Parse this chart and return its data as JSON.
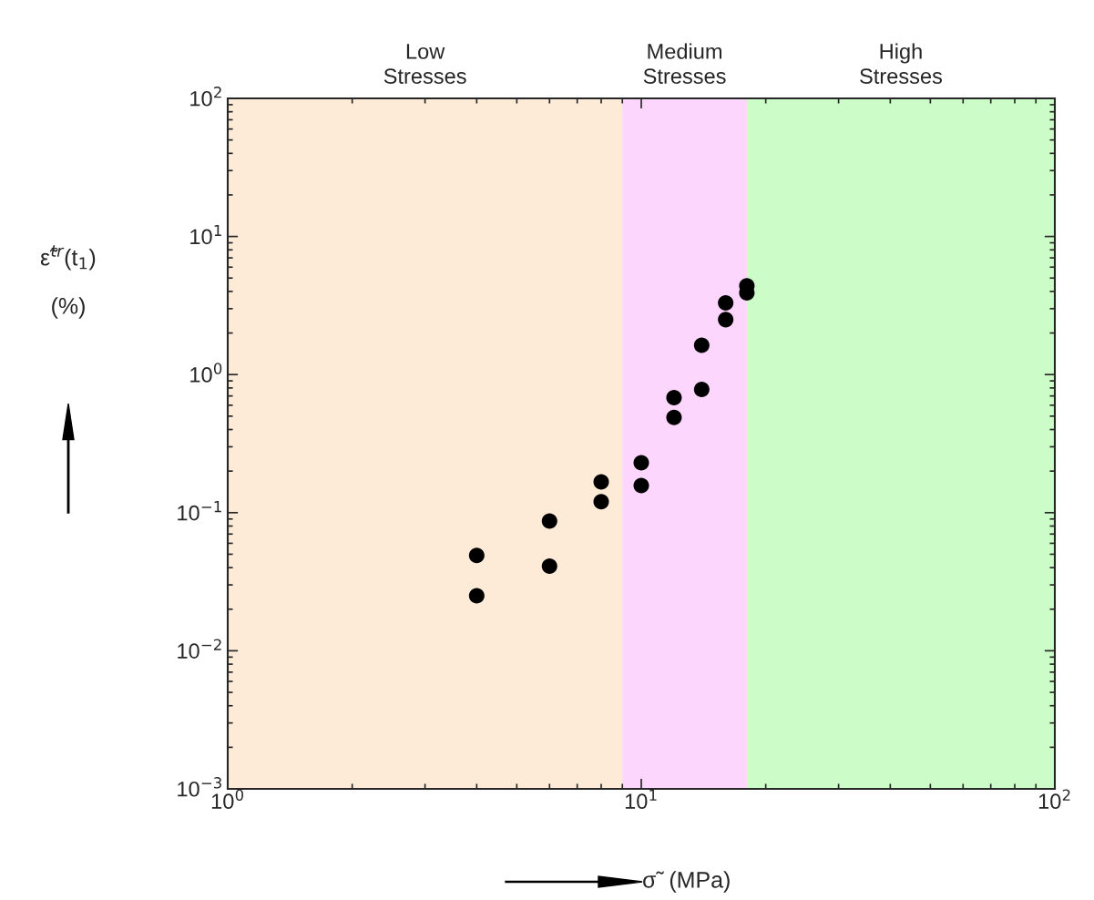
{
  "chart_data": {
    "type": "scatter",
    "xlabel": "σ̃  (MPa)",
    "ylabel": "ε̃$^{tr}$(t$_{1}$)\n(%)",
    "x": [
      4,
      4,
      6,
      6,
      8,
      8,
      10,
      10,
      12,
      12,
      14,
      14,
      16,
      16,
      18,
      18
    ],
    "series": [
      {
        "color": "#000000",
        "values": [
          0.049,
          0.025,
          0.087,
          0.041,
          0.167,
          0.12,
          0.23,
          0.157,
          0.68,
          0.49,
          1.63,
          0.78,
          3.3,
          2.5,
          4.4,
          3.9
        ]
      }
    ],
    "marker": "circle",
    "log": "xy",
    "xlim": [
      1,
      100
    ],
    "ylim": [
      0.001,
      100
    ],
    "xticks": [
      {
        "value": 1,
        "label": "10$^{0}$"
      },
      {
        "value": 10,
        "label": "10$^{1}$"
      },
      {
        "value": 100,
        "label": "10$^{2}$"
      }
    ],
    "yticks": [
      {
        "value": 0.001,
        "label": "10$^{−3}$"
      },
      {
        "value": 0.01,
        "label": "10$^{−2}$"
      },
      {
        "value": 0.1,
        "label": "10$^{−1}$"
      },
      {
        "value": 1,
        "label": "10$^{0}$"
      },
      {
        "value": 10,
        "label": "10$^{1}$"
      },
      {
        "value": 100,
        "label": "10$^{2}$"
      }
    ],
    "bands": [
      {
        "axis": "x",
        "from": 1,
        "to": 9,
        "label": "Low\nStresses",
        "color": "#fdebd8"
      },
      {
        "axis": "x",
        "from": 9,
        "to": 18,
        "label": "Medium\nStresses",
        "color": "#fdd6fd"
      },
      {
        "axis": "x",
        "from": 18,
        "to": 100,
        "label": "High\nStresses",
        "color": "#ccfdc9"
      }
    ],
    "grid": false,
    "legend": false
  }
}
